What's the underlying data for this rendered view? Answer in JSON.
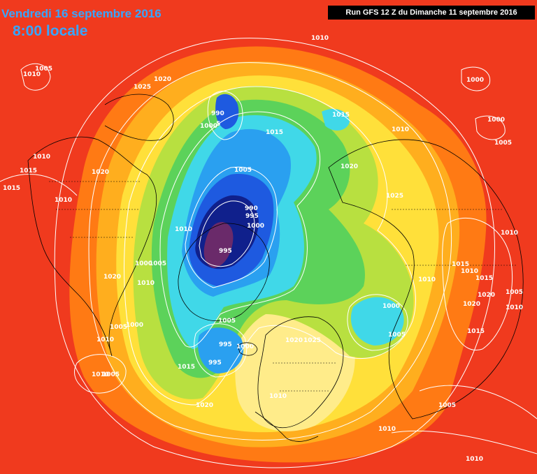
{
  "header": {
    "valid_date": "Vendredi 16 septembre 2016",
    "local_time": "8:00 locale",
    "run_info": "Run GFS 12 Z du Dimanche 11 septembre 2016"
  },
  "colors": {
    "background": "#f03a1e",
    "orange": "#ff7a14",
    "light_orange": "#ffae1e",
    "yellow": "#ffe03a",
    "pale_yellow": "#ffec8a",
    "lime": "#b8e040",
    "green": "#5cd25a",
    "cyan": "#40d8e8",
    "sky": "#2aa0f0",
    "blue": "#1e5ae0",
    "navy": "#10208c",
    "purple": "#6a2a6a",
    "isobar": "#ffffff",
    "coast": "#000000"
  },
  "isobar_labels": [
    {
      "text": "1010"
    },
    {
      "text": "1005"
    },
    {
      "text": "1010"
    },
    {
      "text": "1025"
    },
    {
      "text": "1020"
    },
    {
      "text": "990"
    },
    {
      "text": "1000"
    },
    {
      "text": "5"
    },
    {
      "text": "1015"
    },
    {
      "text": "1015"
    },
    {
      "text": "1010"
    },
    {
      "text": "1000"
    },
    {
      "text": "1000"
    },
    {
      "text": "1005"
    },
    {
      "text": "1010"
    },
    {
      "text": "1015"
    },
    {
      "text": "1020"
    },
    {
      "text": "1015"
    },
    {
      "text": "1010"
    },
    {
      "text": "1005"
    },
    {
      "text": "1020"
    },
    {
      "text": "1025"
    },
    {
      "text": "990"
    },
    {
      "text": "995"
    },
    {
      "text": "1000"
    },
    {
      "text": "1010"
    },
    {
      "text": "995"
    },
    {
      "text": "1010"
    },
    {
      "text": "1000"
    },
    {
      "text": "1005"
    },
    {
      "text": "1020"
    },
    {
      "text": "1010"
    },
    {
      "text": "1015"
    },
    {
      "text": "1010"
    },
    {
      "text": "1015"
    },
    {
      "text": "1020"
    },
    {
      "text": "1005"
    },
    {
      "text": "1005"
    },
    {
      "text": "1000"
    },
    {
      "text": "1010"
    },
    {
      "text": "1005"
    },
    {
      "text": "995"
    },
    {
      "text": "1000"
    },
    {
      "text": "1020"
    },
    {
      "text": "1025"
    },
    {
      "text": "1000"
    },
    {
      "text": "1005"
    },
    {
      "text": "1010"
    },
    {
      "text": "1020"
    },
    {
      "text": "1010"
    },
    {
      "text": "1015"
    },
    {
      "text": "995"
    },
    {
      "text": "1015"
    },
    {
      "text": "1010"
    },
    {
      "text": "1005"
    },
    {
      "text": "1010"
    },
    {
      "text": "1020"
    },
    {
      "text": "1010"
    },
    {
      "text": "1010"
    },
    {
      "text": "1005"
    }
  ]
}
